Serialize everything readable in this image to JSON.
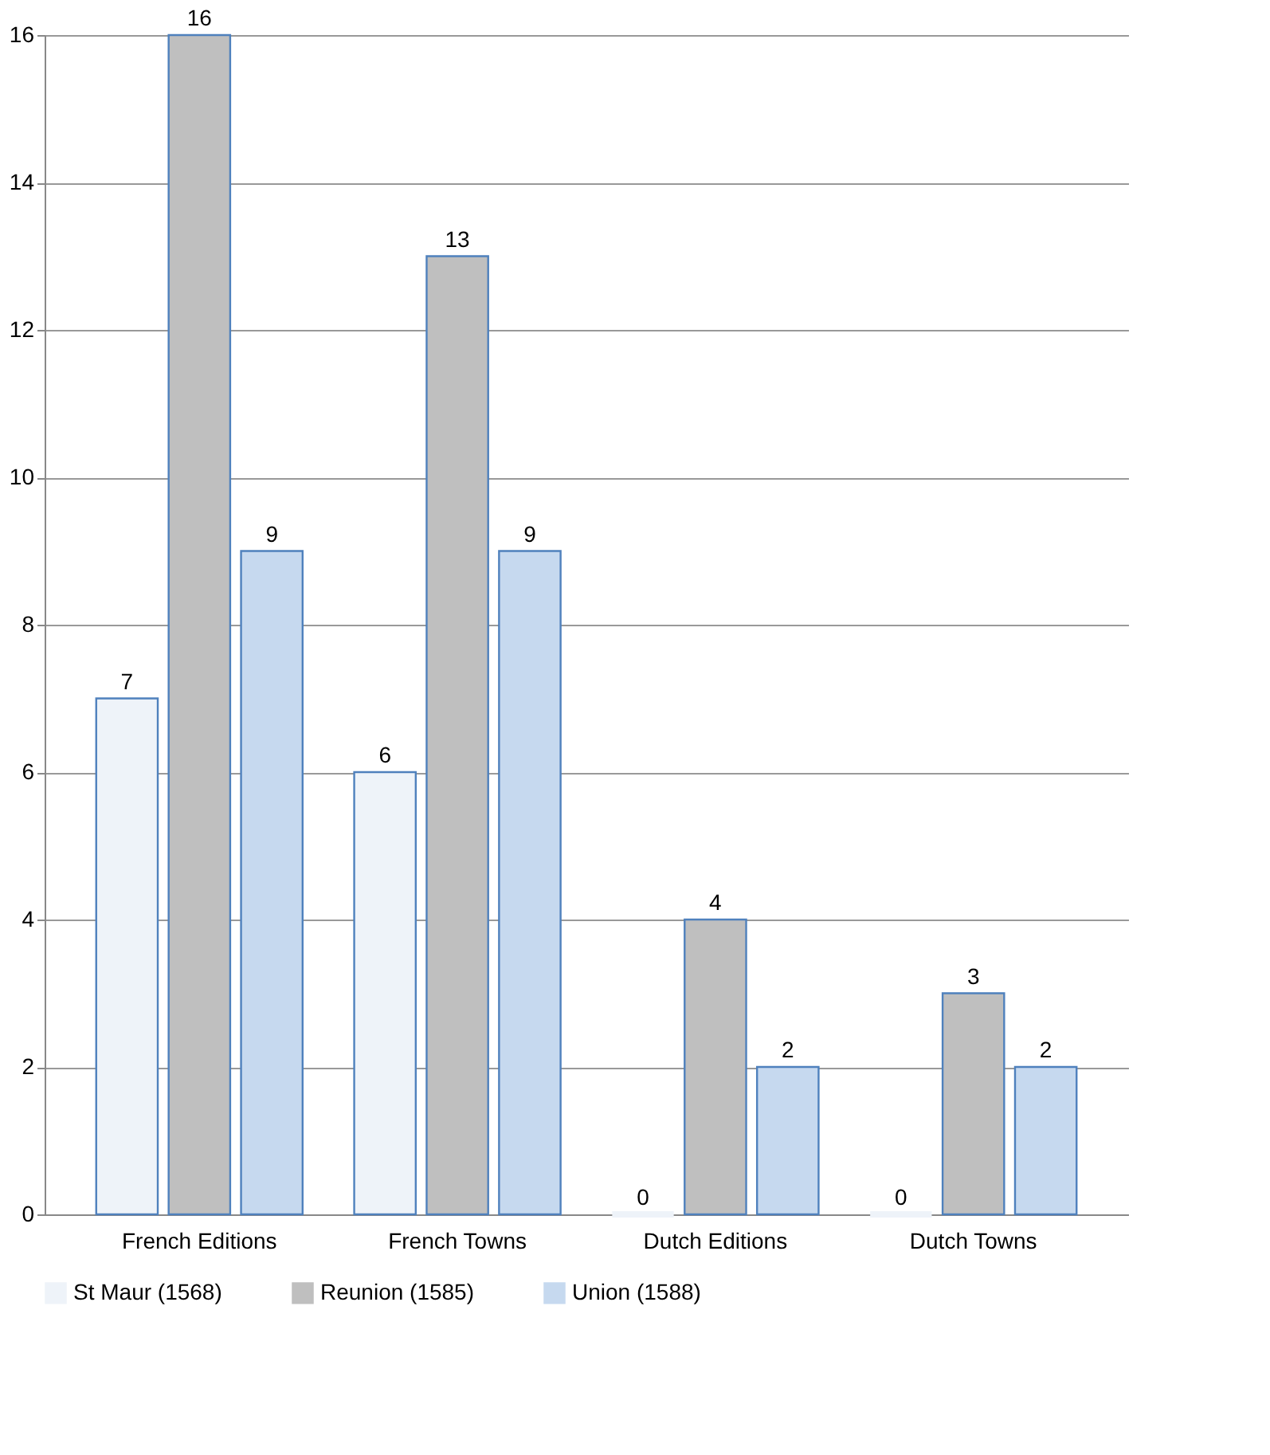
{
  "chart_data": {
    "type": "bar",
    "categories": [
      "French Editions",
      "French Towns",
      "Dutch Editions",
      "Dutch Towns"
    ],
    "series": [
      {
        "name": "St Maur (1568)",
        "color": "#eef3f9",
        "values": [
          7,
          6,
          0,
          0
        ]
      },
      {
        "name": "Reunion (1585)",
        "color": "#bfbfbf",
        "values": [
          16,
          13,
          4,
          3
        ]
      },
      {
        "name": "Union (1588)",
        "color": "#c6d9ef",
        "values": [
          9,
          9,
          2,
          2
        ]
      }
    ],
    "ylim": [
      0,
      16
    ],
    "yticks": [
      0,
      2,
      4,
      6,
      8,
      10,
      12,
      14,
      16
    ],
    "grid": "y",
    "legend": "bottom",
    "data_labels": true
  }
}
